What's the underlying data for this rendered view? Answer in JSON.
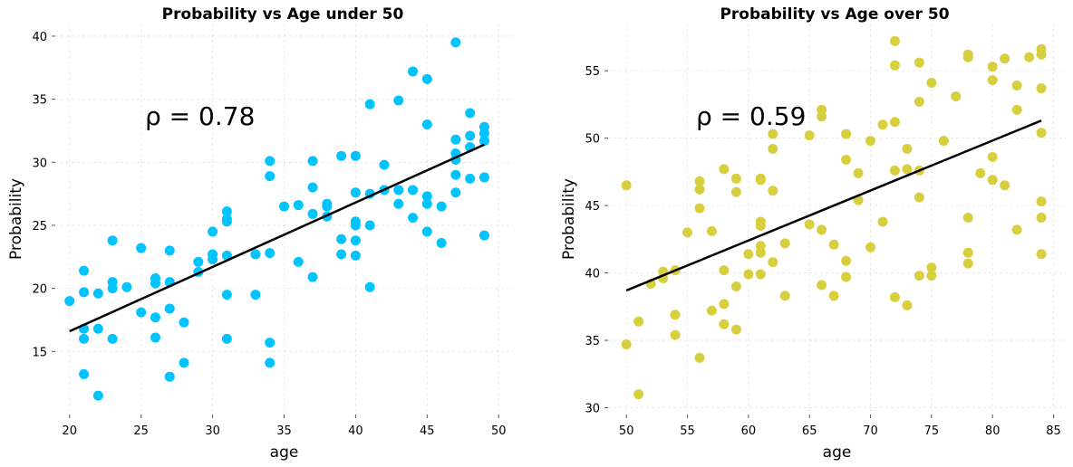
{
  "chart_data": [
    {
      "type": "scatter",
      "title": "Probability vs Age under 50",
      "xlabel": "age",
      "ylabel": "Probability",
      "xlim": [
        19,
        51
      ],
      "ylim": [
        10,
        41
      ],
      "xticks": [
        20,
        25,
        30,
        35,
        40,
        45,
        50
      ],
      "yticks": [
        15,
        20,
        25,
        30,
        35,
        40
      ],
      "grid": true,
      "annotation": "ρ = 0.78",
      "point_color": "#00c3ff",
      "line_color": "#000000",
      "regression_line": {
        "x": [
          20,
          49
        ],
        "y": [
          16.6,
          31.4
        ]
      },
      "points": [
        [
          20,
          19.0
        ],
        [
          21,
          21.4
        ],
        [
          21,
          19.7
        ],
        [
          21,
          16.8
        ],
        [
          21,
          16.0
        ],
        [
          21,
          13.2
        ],
        [
          22,
          19.6
        ],
        [
          22,
          16.8
        ],
        [
          22,
          11.5
        ],
        [
          23,
          23.8
        ],
        [
          23,
          20.5
        ],
        [
          23,
          20.0
        ],
        [
          23,
          16.0
        ],
        [
          24,
          20.1
        ],
        [
          25,
          23.2
        ],
        [
          25,
          18.1
        ],
        [
          26,
          20.8
        ],
        [
          26,
          20.4
        ],
        [
          26,
          17.7
        ],
        [
          26,
          16.1
        ],
        [
          27,
          23.0
        ],
        [
          27,
          20.5
        ],
        [
          27,
          18.4
        ],
        [
          27,
          13.0
        ],
        [
          28,
          17.3
        ],
        [
          28,
          14.1
        ],
        [
          29,
          22.1
        ],
        [
          29,
          21.3
        ],
        [
          30,
          24.5
        ],
        [
          30,
          22.7
        ],
        [
          30,
          22.3
        ],
        [
          31,
          26.1
        ],
        [
          31,
          25.5
        ],
        [
          31,
          25.3
        ],
        [
          31,
          22.6
        ],
        [
          31,
          19.5
        ],
        [
          31,
          16.0
        ],
        [
          33,
          22.7
        ],
        [
          33,
          19.5
        ],
        [
          34,
          30.1
        ],
        [
          34,
          28.9
        ],
        [
          34,
          22.8
        ],
        [
          34,
          15.7
        ],
        [
          34,
          14.1
        ],
        [
          35,
          26.5
        ],
        [
          36,
          26.6
        ],
        [
          36,
          22.1
        ],
        [
          37,
          30.1
        ],
        [
          37,
          28.0
        ],
        [
          37,
          25.9
        ],
        [
          37,
          20.9
        ],
        [
          38,
          26.7
        ],
        [
          38,
          26.5
        ],
        [
          38,
          25.7
        ],
        [
          39,
          30.5
        ],
        [
          39,
          23.9
        ],
        [
          39,
          22.7
        ],
        [
          40,
          30.5
        ],
        [
          40,
          27.6
        ],
        [
          40,
          25.3
        ],
        [
          40,
          25.0
        ],
        [
          40,
          23.8
        ],
        [
          40,
          22.6
        ],
        [
          41,
          34.6
        ],
        [
          41,
          27.5
        ],
        [
          41,
          25.0
        ],
        [
          41,
          20.1
        ],
        [
          42,
          29.8
        ],
        [
          42,
          27.8
        ],
        [
          43,
          34.9
        ],
        [
          43,
          27.8
        ],
        [
          43,
          26.7
        ],
        [
          44,
          37.2
        ],
        [
          44,
          27.8
        ],
        [
          44,
          25.6
        ],
        [
          45,
          36.6
        ],
        [
          45,
          33.0
        ],
        [
          45,
          27.3
        ],
        [
          45,
          26.7
        ],
        [
          45,
          24.5
        ],
        [
          46,
          26.5
        ],
        [
          46,
          23.6
        ],
        [
          47,
          39.5
        ],
        [
          47,
          31.8
        ],
        [
          47,
          30.7
        ],
        [
          47,
          30.2
        ],
        [
          47,
          29.0
        ],
        [
          47,
          27.6
        ],
        [
          48,
          33.9
        ],
        [
          48,
          32.1
        ],
        [
          48,
          31.2
        ],
        [
          48,
          28.7
        ],
        [
          49,
          32.8
        ],
        [
          49,
          32.3
        ],
        [
          49,
          31.7
        ],
        [
          49,
          28.8
        ],
        [
          49,
          24.2
        ]
      ]
    },
    {
      "type": "scatter",
      "title": "Probability vs Age over 50",
      "xlabel": "age",
      "ylabel": "Probability",
      "xlim": [
        48.5,
        86
      ],
      "ylim": [
        29.5,
        58.5
      ],
      "xticks": [
        50,
        55,
        60,
        65,
        70,
        75,
        80,
        85
      ],
      "yticks": [
        30,
        35,
        40,
        45,
        50,
        55
      ],
      "grid": true,
      "annotation": "ρ = 0.59",
      "point_color": "#d8cf3e",
      "line_color": "#000000",
      "regression_line": {
        "x": [
          50,
          84
        ],
        "y": [
          38.7,
          51.3
        ]
      },
      "points": [
        [
          50,
          46.5
        ],
        [
          50,
          34.7
        ],
        [
          51,
          36.4
        ],
        [
          51,
          31.0
        ],
        [
          52,
          39.2
        ],
        [
          53,
          40.1
        ],
        [
          53,
          39.6
        ],
        [
          54,
          40.2
        ],
        [
          54,
          36.9
        ],
        [
          54,
          35.4
        ],
        [
          55,
          43.0
        ],
        [
          56,
          46.8
        ],
        [
          56,
          46.2
        ],
        [
          56,
          44.8
        ],
        [
          56,
          33.7
        ],
        [
          57,
          43.1
        ],
        [
          57,
          37.2
        ],
        [
          58,
          47.7
        ],
        [
          58,
          40.2
        ],
        [
          58,
          37.7
        ],
        [
          58,
          36.2
        ],
        [
          59,
          47.0
        ],
        [
          59,
          46.0
        ],
        [
          59,
          39.0
        ],
        [
          59,
          35.8
        ],
        [
          60,
          41.4
        ],
        [
          60,
          39.9
        ],
        [
          61,
          47.0
        ],
        [
          61,
          46.9
        ],
        [
          61,
          43.8
        ],
        [
          61,
          43.5
        ],
        [
          61,
          42.0
        ],
        [
          61,
          41.5
        ],
        [
          61,
          39.9
        ],
        [
          62,
          50.3
        ],
        [
          62,
          49.2
        ],
        [
          62,
          46.1
        ],
        [
          62,
          40.8
        ],
        [
          63,
          42.2
        ],
        [
          63,
          38.3
        ],
        [
          65,
          50.2
        ],
        [
          65,
          43.6
        ],
        [
          66,
          52.1
        ],
        [
          66,
          51.6
        ],
        [
          66,
          43.2
        ],
        [
          66,
          39.1
        ],
        [
          67,
          42.1
        ],
        [
          67,
          38.3
        ],
        [
          68,
          50.3
        ],
        [
          68,
          48.4
        ],
        [
          68,
          40.9
        ],
        [
          68,
          39.7
        ],
        [
          69,
          47.4
        ],
        [
          69,
          45.4
        ],
        [
          70,
          49.8
        ],
        [
          70,
          41.9
        ],
        [
          71,
          51.0
        ],
        [
          71,
          43.8
        ],
        [
          72,
          57.2
        ],
        [
          72,
          55.4
        ],
        [
          72,
          51.2
        ],
        [
          72,
          47.6
        ],
        [
          72,
          38.2
        ],
        [
          73,
          49.2
        ],
        [
          73,
          47.7
        ],
        [
          73,
          37.6
        ],
        [
          74,
          55.6
        ],
        [
          74,
          52.7
        ],
        [
          74,
          47.6
        ],
        [
          74,
          45.6
        ],
        [
          74,
          39.8
        ],
        [
          75,
          54.1
        ],
        [
          75,
          40.4
        ],
        [
          75,
          39.8
        ],
        [
          76,
          49.8
        ],
        [
          77,
          53.1
        ],
        [
          78,
          56.2
        ],
        [
          78,
          56.0
        ],
        [
          78,
          44.1
        ],
        [
          78,
          41.5
        ],
        [
          78,
          40.7
        ],
        [
          79,
          47.4
        ],
        [
          80,
          55.3
        ],
        [
          80,
          54.3
        ],
        [
          80,
          48.6
        ],
        [
          80,
          46.9
        ],
        [
          81,
          55.9
        ],
        [
          81,
          46.5
        ],
        [
          82,
          53.9
        ],
        [
          82,
          52.1
        ],
        [
          82,
          43.2
        ],
        [
          83,
          56.0
        ],
        [
          84,
          56.6
        ],
        [
          84,
          56.2
        ],
        [
          84,
          53.7
        ],
        [
          84,
          50.4
        ],
        [
          84,
          45.3
        ],
        [
          84,
          44.1
        ],
        [
          84,
          41.4
        ]
      ]
    }
  ]
}
